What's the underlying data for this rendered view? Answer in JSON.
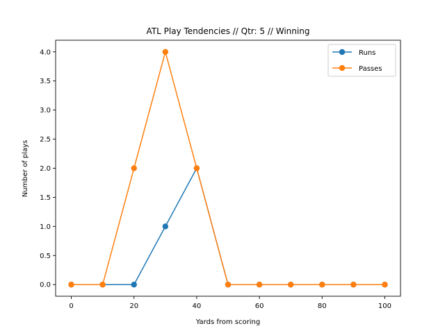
{
  "chart_data": {
    "type": "line",
    "title": "ATL Play Tendencies // Qtr: 5 // Winning",
    "xlabel": "Yards from scoring",
    "ylabel": "Number of plays",
    "x": [
      0,
      10,
      20,
      30,
      40,
      50,
      60,
      70,
      80,
      90,
      100
    ],
    "xlim": [
      -5,
      105
    ],
    "ylim": [
      -0.2,
      4.2
    ],
    "xticks": [
      0,
      20,
      40,
      60,
      80,
      100
    ],
    "yticks": [
      0.0,
      0.5,
      1.0,
      1.5,
      2.0,
      2.5,
      3.0,
      3.5,
      4.0
    ],
    "xtick_labels": [
      "0",
      "20",
      "40",
      "60",
      "80",
      "100"
    ],
    "ytick_labels": [
      "0.0",
      "0.5",
      "1.0",
      "1.5",
      "2.0",
      "2.5",
      "3.0",
      "3.5",
      "4.0"
    ],
    "grid": false,
    "legend_position": "top-right",
    "series": [
      {
        "name": "Runs",
        "color": "#1f77b4",
        "values": [
          0,
          0,
          0,
          1,
          2,
          0,
          0,
          0,
          0,
          0,
          0
        ]
      },
      {
        "name": "Passes",
        "color": "#ff7f0e",
        "values": [
          0,
          0,
          2,
          4,
          2,
          0,
          0,
          0,
          0,
          0,
          0
        ]
      }
    ]
  }
}
